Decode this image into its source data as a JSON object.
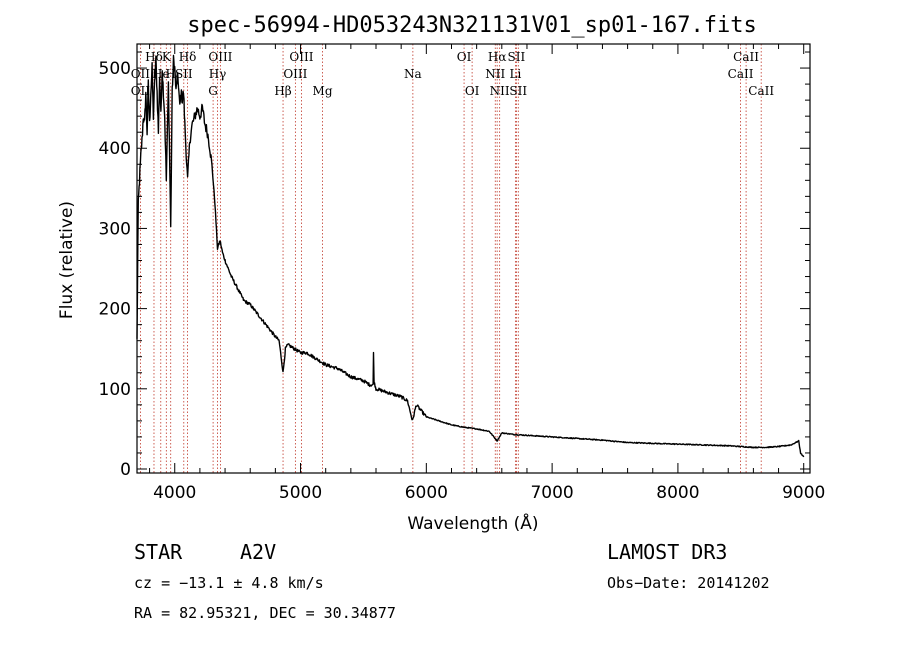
{
  "chart_data": {
    "type": "line",
    "title": "spec-56994-HD053243N321131V01_sp01-167.fits",
    "xlabel": "Wavelength (Å)",
    "ylabel": "Flux (relative)",
    "xlim": [
      3700,
      9050
    ],
    "ylim": [
      -5,
      530
    ],
    "x_ticks": [
      4000,
      5000,
      6000,
      7000,
      8000,
      9000
    ],
    "y_ticks": [
      0,
      100,
      200,
      300,
      400,
      500
    ],
    "grid": false,
    "series": [
      {
        "name": "spectrum",
        "points": [
          [
            3700,
            160
          ],
          [
            3710,
            330
          ],
          [
            3720,
            360
          ],
          [
            3730,
            390
          ],
          [
            3740,
            410
          ],
          [
            3750,
            440
          ],
          [
            3760,
            430
          ],
          [
            3770,
            470
          ],
          [
            3780,
            420
          ],
          [
            3790,
            480
          ],
          [
            3800,
            430
          ],
          [
            3810,
            470
          ],
          [
            3820,
            500
          ],
          [
            3830,
            440
          ],
          [
            3840,
            480
          ],
          [
            3850,
            510
          ],
          [
            3860,
            470
          ],
          [
            3870,
            420
          ],
          [
            3880,
            490
          ],
          [
            3890,
            440
          ],
          [
            3900,
            500
          ],
          [
            3910,
            470
          ],
          [
            3920,
            440
          ],
          [
            3933,
            360
          ],
          [
            3950,
            480
          ],
          [
            3968,
            300
          ],
          [
            3980,
            470
          ],
          [
            3990,
            510
          ],
          [
            4000,
            500
          ],
          [
            4010,
            470
          ],
          [
            4020,
            490
          ],
          [
            4030,
            480
          ],
          [
            4040,
            450
          ],
          [
            4050,
            470
          ],
          [
            4060,
            460
          ],
          [
            4070,
            470
          ],
          [
            4080,
            430
          ],
          [
            4102,
            360
          ],
          [
            4120,
            410
          ],
          [
            4140,
            430
          ],
          [
            4160,
            440
          ],
          [
            4180,
            450
          ],
          [
            4200,
            440
          ],
          [
            4220,
            450
          ],
          [
            4240,
            430
          ],
          [
            4260,
            420
          ],
          [
            4280,
            400
          ],
          [
            4300,
            370
          ],
          [
            4320,
            330
          ],
          [
            4340,
            275
          ],
          [
            4360,
            285
          ],
          [
            4380,
            270
          ],
          [
            4400,
            260
          ],
          [
            4450,
            240
          ],
          [
            4500,
            225
          ],
          [
            4550,
            210
          ],
          [
            4600,
            205
          ],
          [
            4650,
            195
          ],
          [
            4700,
            185
          ],
          [
            4750,
            175
          ],
          [
            4800,
            165
          ],
          [
            4830,
            160
          ],
          [
            4861,
            120
          ],
          [
            4880,
            150
          ],
          [
            4900,
            155
          ],
          [
            4950,
            150
          ],
          [
            5000,
            145
          ],
          [
            5050,
            145
          ],
          [
            5100,
            140
          ],
          [
            5150,
            135
          ],
          [
            5200,
            130
          ],
          [
            5300,
            125
          ],
          [
            5400,
            115
          ],
          [
            5500,
            110
          ],
          [
            5550,
            105
          ],
          [
            5577,
            105
          ],
          [
            5580,
            145
          ],
          [
            5585,
            108
          ],
          [
            5600,
            100
          ],
          [
            5700,
            95
          ],
          [
            5800,
            90
          ],
          [
            5850,
            85
          ],
          [
            5890,
            60
          ],
          [
            5920,
            80
          ],
          [
            6000,
            65
          ],
          [
            6100,
            60
          ],
          [
            6200,
            55
          ],
          [
            6300,
            52
          ],
          [
            6400,
            50
          ],
          [
            6500,
            47
          ],
          [
            6563,
            35
          ],
          [
            6600,
            45
          ],
          [
            6700,
            43
          ],
          [
            6800,
            42
          ],
          [
            6900,
            41
          ],
          [
            7000,
            40
          ],
          [
            7200,
            38
          ],
          [
            7400,
            36
          ],
          [
            7600,
            33
          ],
          [
            7800,
            32
          ],
          [
            8000,
            31
          ],
          [
            8200,
            30
          ],
          [
            8400,
            29
          ],
          [
            8500,
            28
          ],
          [
            8600,
            27
          ],
          [
            8700,
            27
          ],
          [
            8800,
            28
          ],
          [
            8900,
            30
          ],
          [
            8960,
            35
          ],
          [
            8975,
            20
          ],
          [
            9000,
            15
          ]
        ]
      }
    ],
    "lines": [
      {
        "label": "Hδ",
        "x": 3835,
        "row": 1
      },
      {
        "label": "K",
        "x": 3933,
        "row": 1
      },
      {
        "label": "Hδ",
        "x": 4102,
        "row": 1
      },
      {
        "label": "OIII",
        "x": 4363,
        "row": 1
      },
      {
        "label": "OIII",
        "x": 5007,
        "row": 1
      },
      {
        "label": "OI",
        "x": 6300,
        "row": 1
      },
      {
        "label": "Hα",
        "x": 6563,
        "row": 1
      },
      {
        "label": "SII",
        "x": 6716,
        "row": 1
      },
      {
        "label": "CaII",
        "x": 8542,
        "row": 1
      },
      {
        "label": "OII",
        "x": 3727,
        "row": 2
      },
      {
        "label": "He",
        "x": 3889,
        "row": 2
      },
      {
        "label": "H",
        "x": 3968,
        "row": 2
      },
      {
        "label": "SII",
        "x": 4072,
        "row": 2
      },
      {
        "label": "Hγ",
        "x": 4340,
        "row": 2
      },
      {
        "label": "OIII",
        "x": 4959,
        "row": 2
      },
      {
        "label": "Na",
        "x": 5893,
        "row": 2
      },
      {
        "label": "NII",
        "x": 6548,
        "row": 2
      },
      {
        "label": "Li",
        "x": 6708,
        "row": 2
      },
      {
        "label": "CaII",
        "x": 8498,
        "row": 2
      },
      {
        "label": "OII",
        "x": 3727,
        "row": 3
      },
      {
        "label": "G",
        "x": 4305,
        "row": 3
      },
      {
        "label": "Hβ",
        "x": 4861,
        "row": 3
      },
      {
        "label": "Mg",
        "x": 5175,
        "row": 3
      },
      {
        "label": "OI",
        "x": 6364,
        "row": 3
      },
      {
        "label": "NII",
        "x": 6583,
        "row": 3
      },
      {
        "label": "SII",
        "x": 6731,
        "row": 3
      },
      {
        "label": "CaII",
        "x": 8662,
        "row": 3
      }
    ]
  },
  "info": {
    "class": "STAR",
    "subclass": "A2V",
    "survey": "LAMOST DR3",
    "cz": "cz = −13.1 ± 4.8 km/s",
    "obs_date": "Obs−Date: 20141202",
    "coords": "RA =  82.95321, DEC =  30.34877"
  }
}
